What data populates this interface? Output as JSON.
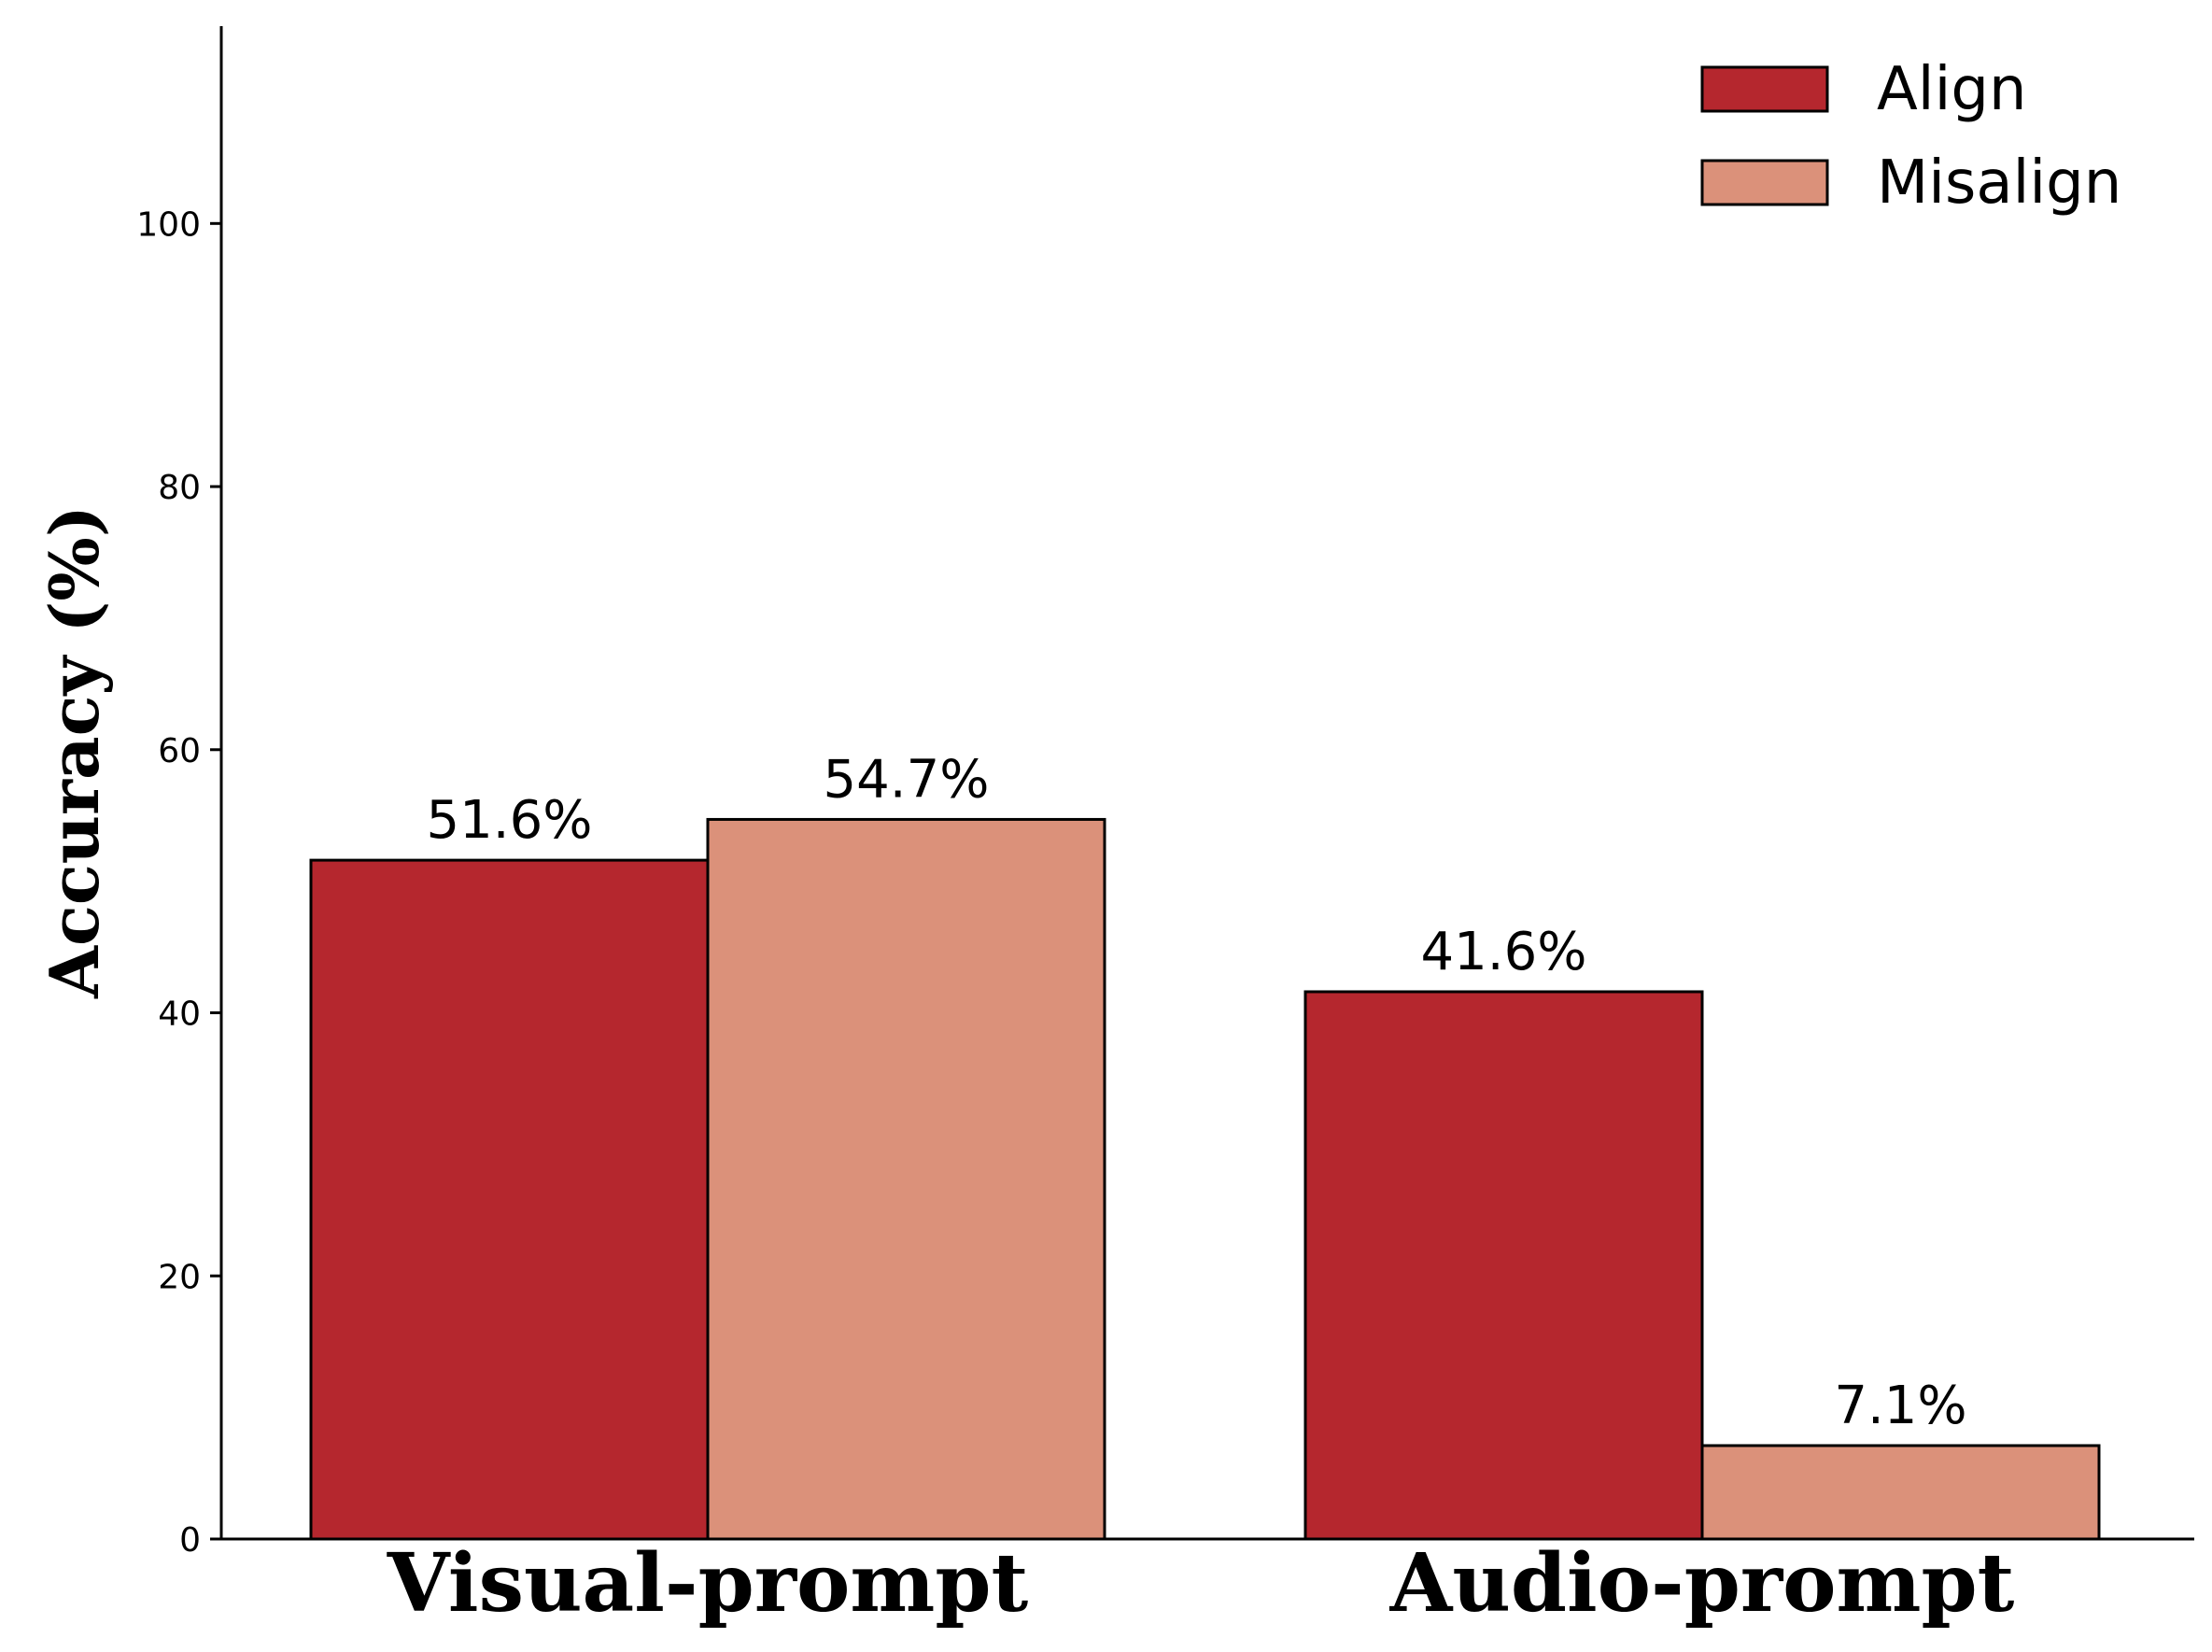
{
  "chart_data": {
    "type": "bar",
    "title": "",
    "xlabel": "",
    "ylabel": "Accuracy (%)",
    "categories": [
      "Visual-prompt",
      "Audio-prompt"
    ],
    "series": [
      {
        "name": "Align",
        "color": "#b5272e",
        "values": [
          51.6,
          41.6
        ],
        "labels": [
          "51.6%",
          "41.6%"
        ]
      },
      {
        "name": "Misalign",
        "color": "#db917a",
        "values": [
          54.7,
          7.1
        ],
        "labels": [
          "54.7%",
          "7.1%"
        ]
      }
    ],
    "ylim": [
      0,
      115
    ],
    "yticks": [
      0,
      20,
      40,
      60,
      80,
      100
    ],
    "grid": false,
    "legend": "top-right"
  }
}
